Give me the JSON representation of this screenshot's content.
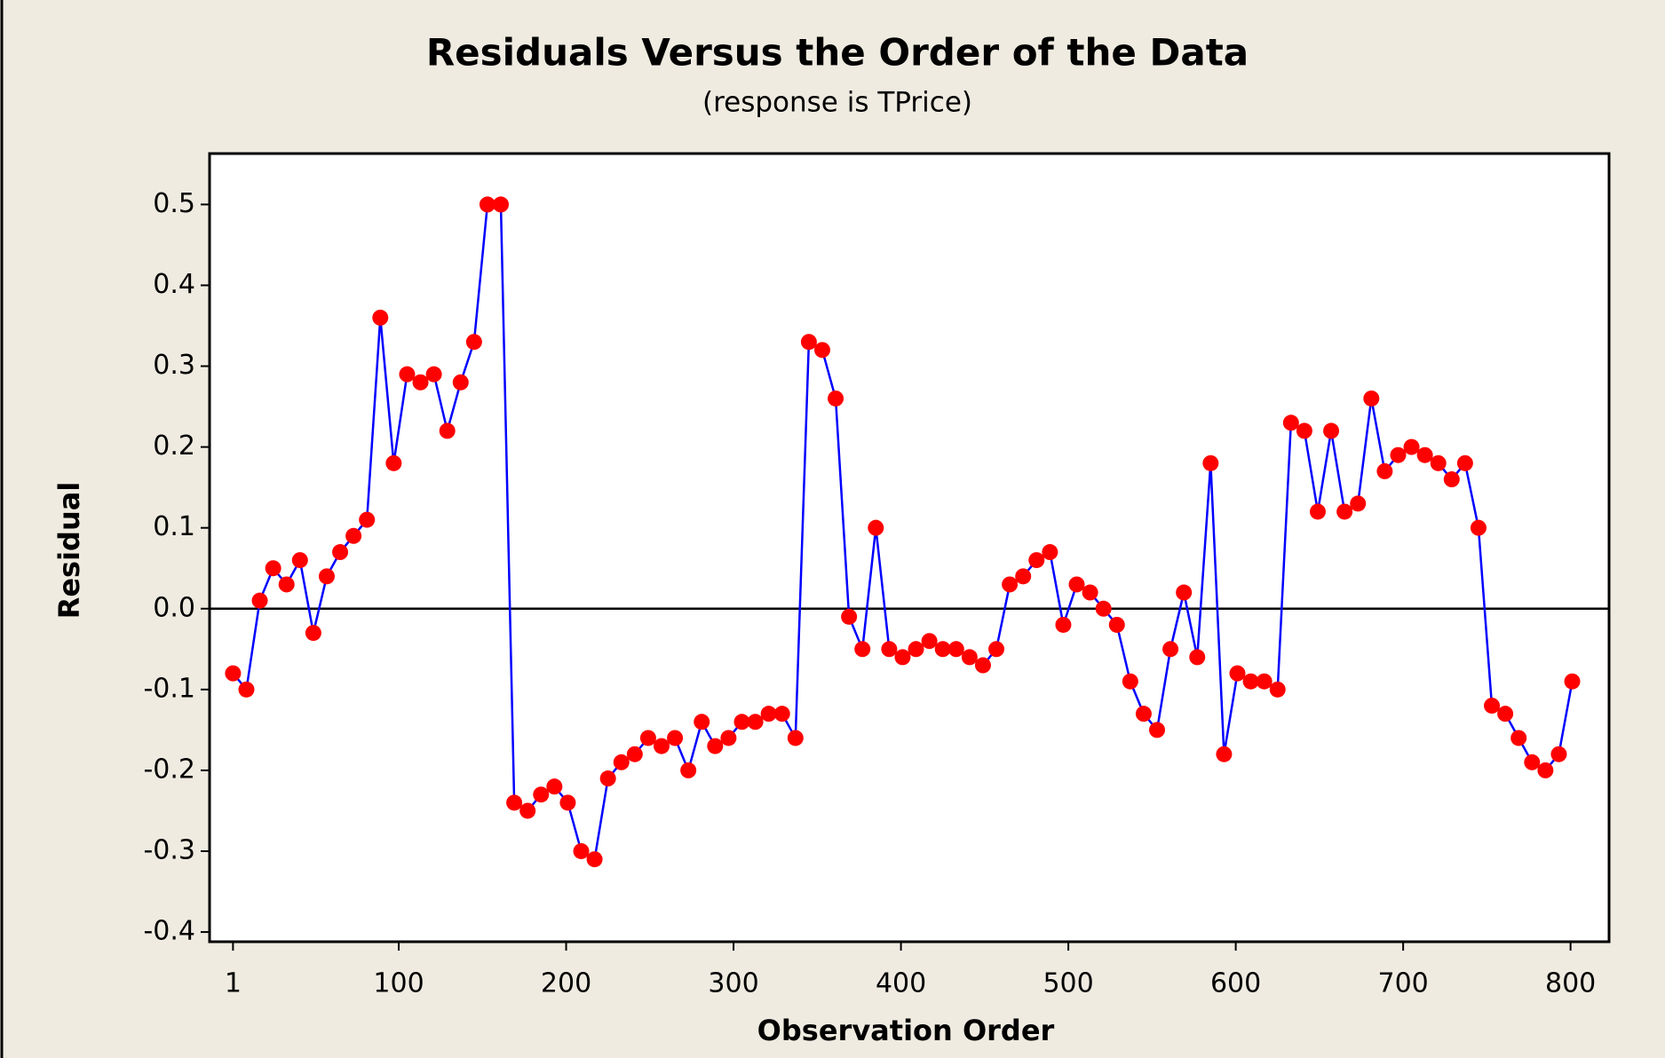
{
  "chart_data": {
    "type": "line",
    "title": "Residuals Versus the Order of the Data",
    "subtitle": "(response is TPrice)",
    "x_label": "Observation Order",
    "y_label": "Residual",
    "x": [
      1,
      9,
      17,
      25,
      33,
      41,
      49,
      57,
      65,
      73,
      81,
      89,
      97,
      105,
      113,
      121,
      129,
      137,
      145,
      153,
      161,
      169,
      177,
      185,
      193,
      201,
      209,
      217,
      225,
      233,
      241,
      249,
      257,
      265,
      273,
      281,
      289,
      297,
      305,
      313,
      321,
      329,
      337,
      345,
      353,
      361,
      369,
      377,
      385,
      393,
      401,
      409,
      417,
      425,
      433,
      441,
      449,
      457,
      465,
      473,
      481,
      489,
      497,
      505,
      513,
      521,
      529,
      537,
      545,
      553,
      561,
      569,
      577,
      585,
      593,
      601,
      609,
      617,
      625,
      633,
      641,
      649,
      657,
      665,
      673,
      681,
      689,
      697,
      705,
      713,
      721,
      729,
      737,
      745,
      753,
      761,
      769,
      777,
      785,
      793,
      801
    ],
    "values": [
      -0.08,
      -0.1,
      0.01,
      0.05,
      0.03,
      0.06,
      -0.03,
      0.04,
      0.07,
      0.09,
      0.11,
      0.36,
      0.18,
      0.29,
      0.28,
      0.29,
      0.22,
      0.28,
      0.33,
      0.5,
      0.5,
      -0.24,
      -0.25,
      -0.23,
      -0.22,
      -0.24,
      -0.3,
      -0.31,
      -0.21,
      -0.19,
      -0.18,
      -0.16,
      -0.17,
      -0.16,
      -0.2,
      -0.14,
      -0.17,
      -0.16,
      -0.14,
      -0.14,
      -0.13,
      -0.13,
      -0.16,
      0.33,
      0.32,
      0.26,
      -0.01,
      -0.05,
      0.1,
      -0.05,
      -0.06,
      -0.05,
      -0.04,
      -0.05,
      -0.05,
      -0.06,
      -0.07,
      -0.05,
      0.03,
      0.04,
      0.06,
      0.07,
      -0.02,
      0.03,
      0.02,
      0.0,
      -0.02,
      -0.09,
      -0.13,
      -0.15,
      -0.05,
      0.02,
      -0.06,
      0.18,
      -0.18,
      -0.08,
      -0.09,
      -0.09,
      -0.1,
      0.23,
      0.22,
      0.12,
      0.22,
      0.12,
      0.13,
      0.26,
      0.17,
      0.19,
      0.2,
      0.19,
      0.18,
      0.16,
      0.18,
      0.1,
      -0.12,
      -0.13,
      -0.16,
      -0.19,
      -0.2,
      -0.18,
      -0.09
    ],
    "marker_color": "#ff0000",
    "line_color": "#0000ff",
    "reference_line": 0,
    "xlim": [
      -13,
      823
    ],
    "ylim": [
      -0.412,
      0.563
    ],
    "xticks": [
      1,
      100,
      200,
      300,
      400,
      500,
      600,
      700,
      800
    ],
    "yticks": [
      0.5,
      0.4,
      0.3,
      0.2,
      0.1,
      {
        "value": 0,
        "label": "0.0"
      },
      -0.1,
      -0.2,
      -0.3,
      -0.4
    ]
  }
}
